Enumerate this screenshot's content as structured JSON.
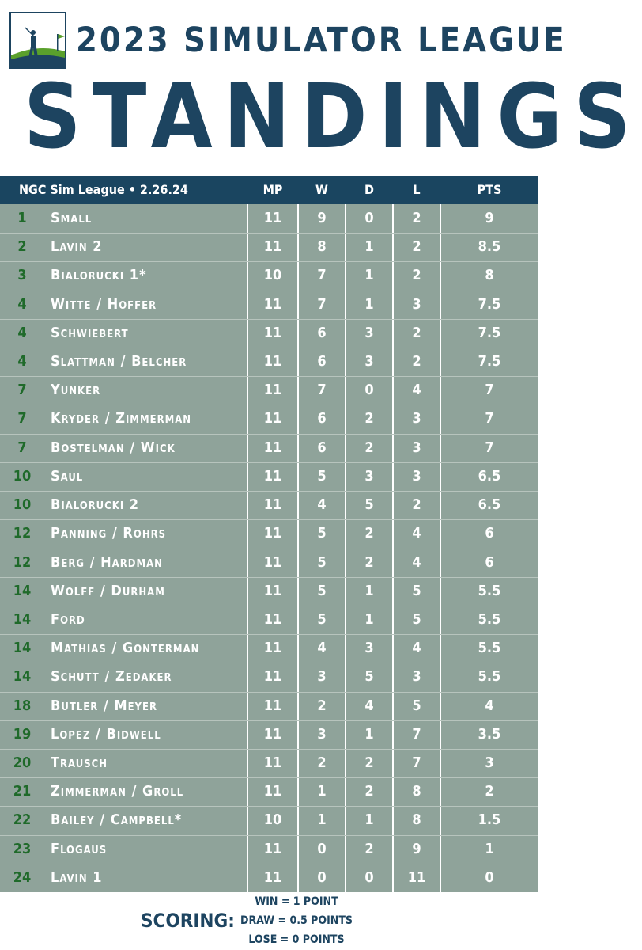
{
  "header": {
    "title": "2023 SIMULATOR LEAGUE",
    "subtitle": "STANDINGS"
  },
  "table": {
    "columns": [
      "NGC Sim League  •  2.26.24",
      "MP",
      "W",
      "D",
      "L",
      "PTS"
    ],
    "rows": [
      [
        "1",
        "Small",
        11,
        9,
        0,
        2,
        9
      ],
      [
        "2",
        "Lavin 2",
        11,
        8,
        1,
        2,
        8.5
      ],
      [
        "3",
        "Bialorucki 1*",
        10,
        7,
        1,
        2,
        8
      ],
      [
        "4",
        "Witte / Hoffer",
        11,
        7,
        1,
        3,
        7.5
      ],
      [
        "4",
        "Schwiebert",
        11,
        6,
        3,
        2,
        7.5
      ],
      [
        "4",
        "Slattman / Belcher",
        11,
        6,
        3,
        2,
        7.5
      ],
      [
        "7",
        "Yunker",
        11,
        7,
        0,
        4,
        7
      ],
      [
        "7",
        "Kryder / Zimmerman",
        11,
        6,
        2,
        3,
        7
      ],
      [
        "7",
        "Bostelman / Wick",
        11,
        6,
        2,
        3,
        7
      ],
      [
        "10",
        "Saul",
        11,
        5,
        3,
        3,
        6.5
      ],
      [
        "10",
        "Bialorucki 2",
        11,
        4,
        5,
        2,
        6.5
      ],
      [
        "12",
        "Panning / Rohrs",
        11,
        5,
        2,
        4,
        6
      ],
      [
        "12",
        "Berg / Hardman",
        11,
        5,
        2,
        4,
        6
      ],
      [
        "14",
        "Wolff / Durham",
        11,
        5,
        1,
        5,
        5.5
      ],
      [
        "14",
        "Ford",
        11,
        5,
        1,
        5,
        5.5
      ],
      [
        "14",
        "Mathias / Gonterman",
        11,
        4,
        3,
        4,
        5.5
      ],
      [
        "14",
        "Schutt / Zedaker",
        11,
        3,
        5,
        3,
        5.5
      ],
      [
        "18",
        "Butler / Meyer",
        11,
        2,
        4,
        5,
        4
      ],
      [
        "19",
        "Lopez / Bidwell",
        11,
        3,
        1,
        7,
        3.5
      ],
      [
        "20",
        "Trausch",
        11,
        2,
        2,
        7,
        3
      ],
      [
        "21",
        "Zimmerman / Groll",
        11,
        1,
        2,
        8,
        2
      ],
      [
        "22",
        "Bailey / Campbell*",
        10,
        1,
        1,
        8,
        1.5
      ],
      [
        "23",
        "Flogaus",
        11,
        0,
        2,
        9,
        1
      ],
      [
        "24",
        "Lavin 1",
        11,
        0,
        0,
        11,
        0
      ]
    ]
  },
  "footer": {
    "label": "SCORING:",
    "lines": [
      "WIN = 1 POINT",
      "DRAW = 0.5 POINTS",
      "LOSE = 0 POINTS"
    ]
  }
}
